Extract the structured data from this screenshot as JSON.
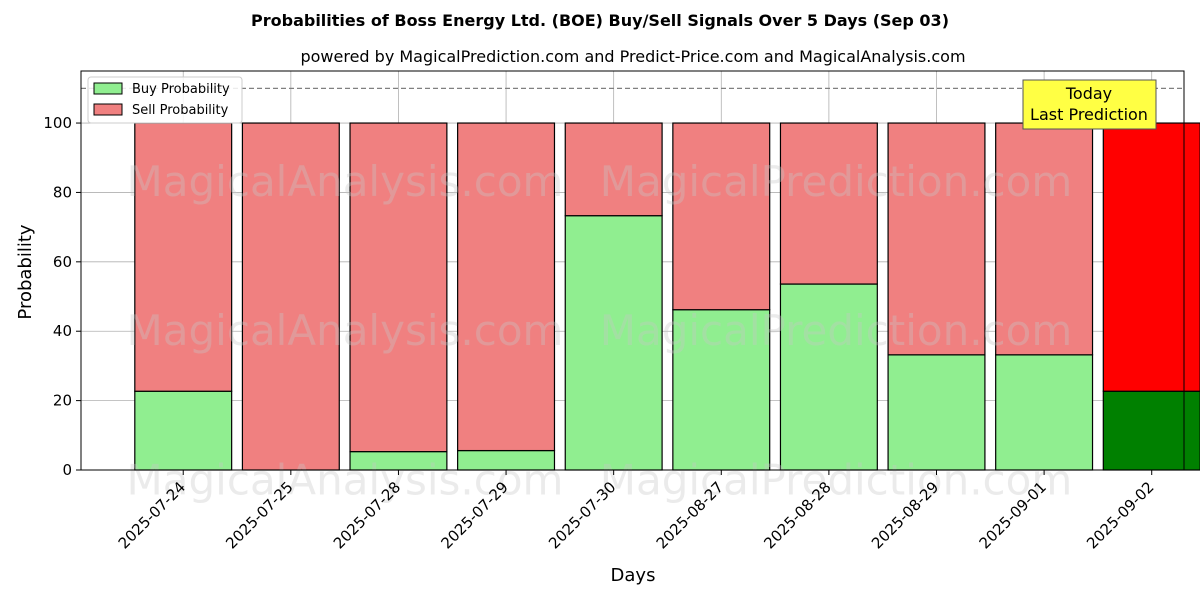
{
  "chart_data": {
    "type": "bar",
    "stacked": true,
    "title": "Probabilities of Boss Energy Ltd. (BOE) Buy/Sell Signals Over 5 Days (Sep 03)",
    "subtitle": "powered by MagicalPrediction.com and Predict-Price.com and MagicalAnalysis.com",
    "xlabel": "Days",
    "ylabel": "Probability",
    "ylim": [
      0,
      115
    ],
    "yticks": [
      0,
      20,
      40,
      60,
      80,
      100
    ],
    "grid": true,
    "legend_position": "top-left",
    "threshold_line": 110,
    "categories": [
      "2025-07-24",
      "2025-07-25",
      "2025-07-28",
      "2025-07-29",
      "2025-07-30",
      "2025-08-27",
      "2025-08-28",
      "2025-08-29",
      "2025-09-01",
      "2025-09-02"
    ],
    "series": [
      {
        "name": "Buy Probability",
        "color": "#90ee90",
        "highlight_color": "#008000",
        "values": [
          22.7,
          0,
          5.3,
          5.6,
          73.3,
          46.2,
          53.6,
          33.2,
          33.2,
          22.7
        ]
      },
      {
        "name": "Sell Probability",
        "color": "#f08080",
        "highlight_color": "#ff0000",
        "values": [
          77.3,
          100,
          94.7,
          94.4,
          26.7,
          53.8,
          46.4,
          66.8,
          66.8,
          77.3
        ]
      }
    ],
    "highlight_index": 9,
    "annotation": {
      "lines": [
        "Today",
        "Last Prediction"
      ],
      "background": "#ffff44"
    },
    "watermarks": [
      "MagicalAnalysis.com",
      "MagicalPrediction.com"
    ]
  }
}
